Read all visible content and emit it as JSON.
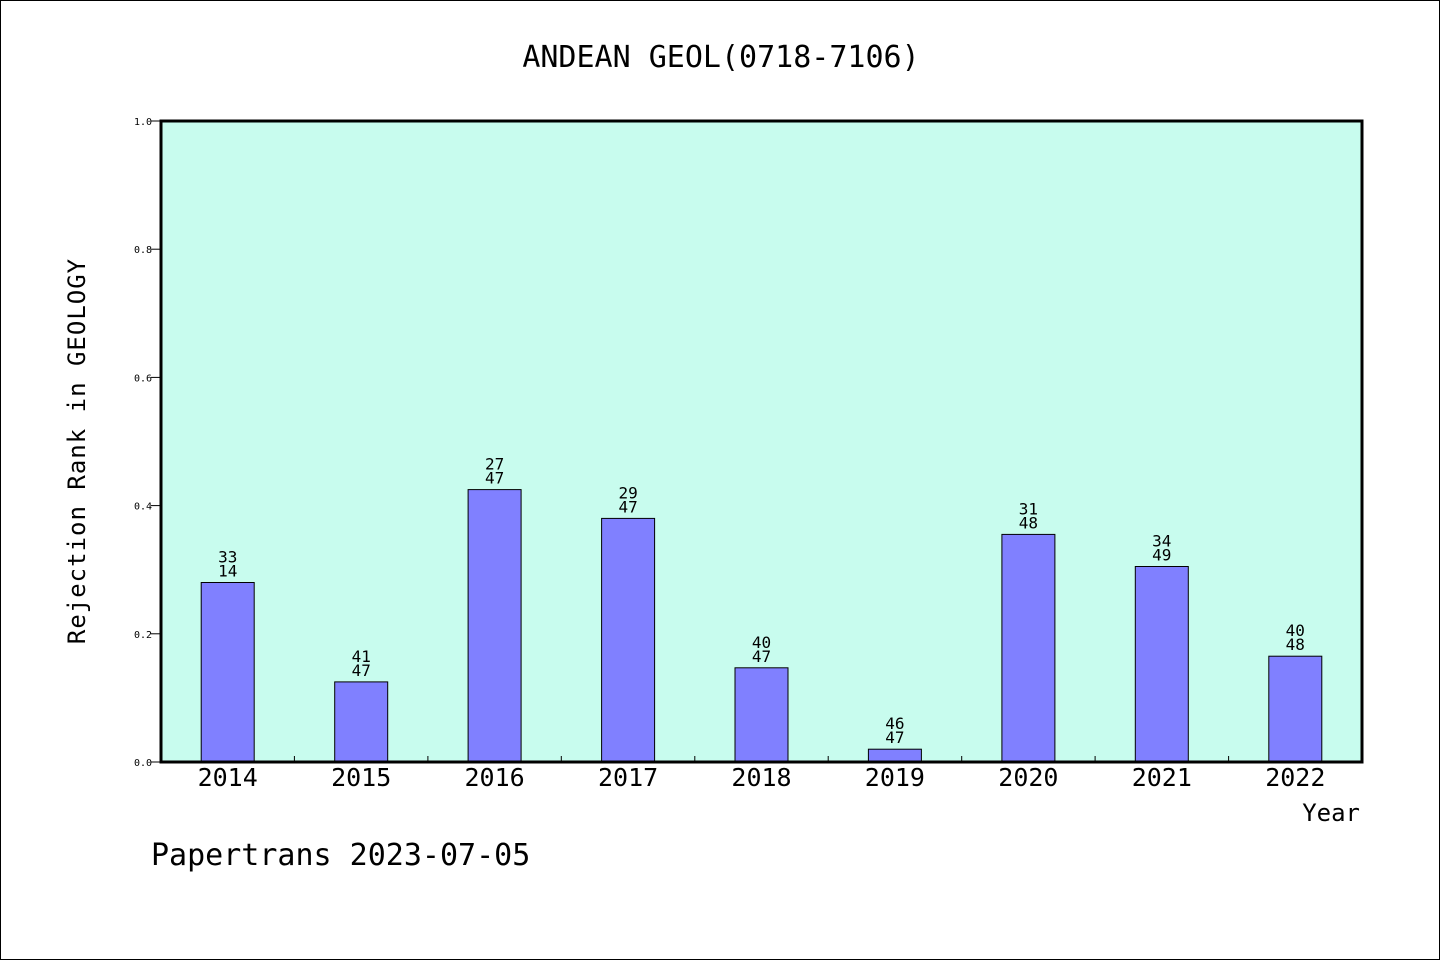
{
  "chart_data": {
    "type": "bar",
    "title": "ANDEAN GEOL(0718-7106)",
    "xlabel": "Year",
    "ylabel": "Rejection Rank in GEOLOGY",
    "ylim": [
      0,
      1.0
    ],
    "yticks": [
      "0.0",
      "0.2",
      "0.4",
      "0.6",
      "0.8",
      "1.0"
    ],
    "categories": [
      "2014",
      "2015",
      "2016",
      "2017",
      "2018",
      "2019",
      "2020",
      "2021",
      "2022"
    ],
    "values": [
      0.28,
      0.125,
      0.425,
      0.38,
      0.147,
      0.02,
      0.355,
      0.305,
      0.165
    ],
    "rank_labels": [
      "33",
      "41",
      "27",
      "29",
      "40",
      "46",
      "31",
      "34",
      "40"
    ],
    "total_labels": [
      "14",
      "47",
      "47",
      "47",
      "47",
      "47",
      "48",
      "49",
      "48"
    ],
    "grid": false,
    "colors": {
      "plot_background": "#c8fcee",
      "bar_fill": "#8080ff",
      "bar_edge": "#000000"
    }
  },
  "footer": "Papertrans 2023-07-05"
}
